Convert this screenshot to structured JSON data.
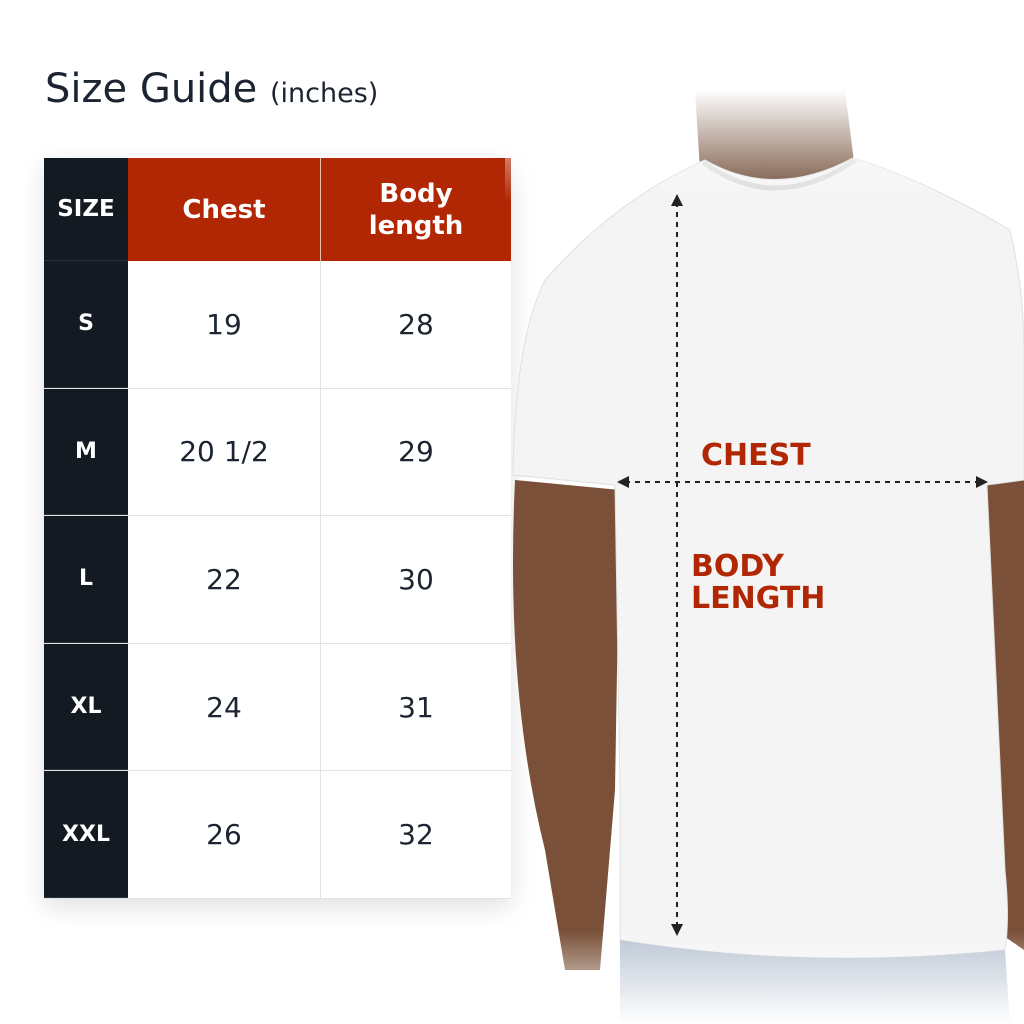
{
  "title": {
    "main": "Size Guide",
    "unit": "(inches)"
  },
  "table": {
    "headers": [
      "SIZE",
      "Chest",
      "Body length"
    ],
    "rows": [
      {
        "size": "S",
        "chest": "19",
        "length": "28"
      },
      {
        "size": "M",
        "chest": "20 1/2",
        "length": "29"
      },
      {
        "size": "L",
        "chest": "22",
        "length": "30"
      },
      {
        "size": "XL",
        "chest": "24",
        "length": "31"
      },
      {
        "size": "XXL",
        "chest": "26",
        "length": "32"
      }
    ]
  },
  "diagram": {
    "chest_label": "CHEST",
    "length_label_1": "BODY",
    "length_label_2": "LENGTH"
  },
  "colors": {
    "accent": "#b12704",
    "dark": "#131a22"
  }
}
